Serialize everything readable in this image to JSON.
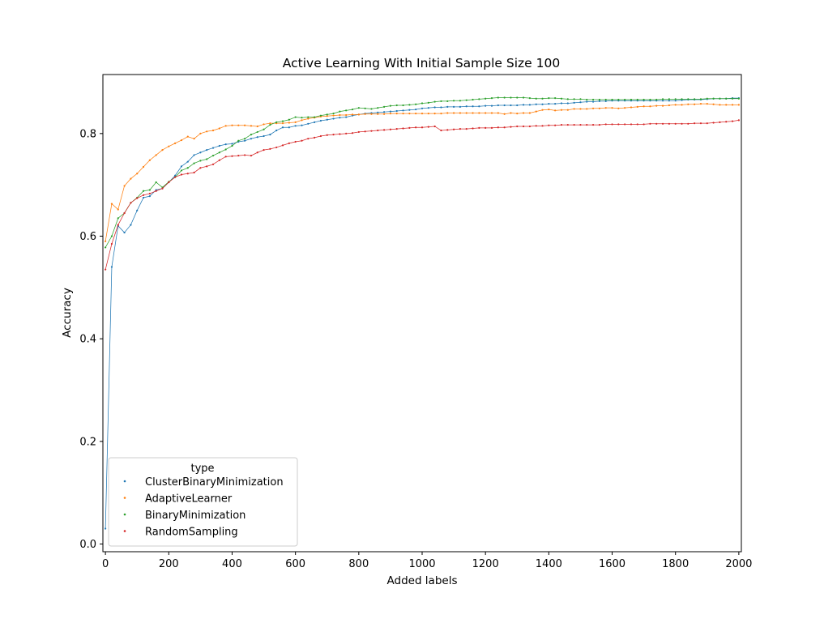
{
  "chart_data": {
    "type": "line",
    "title": "Active Learning With Initial Sample Size 100",
    "xlabel": "Added labels",
    "ylabel": "Accuracy",
    "xlim": [
      -8,
      2008
    ],
    "ylim": [
      -0.015,
      0.915
    ],
    "x_ticks": [
      0,
      200,
      400,
      600,
      800,
      1000,
      1200,
      1400,
      1600,
      1800,
      2000
    ],
    "y_ticks": [
      0.0,
      0.2,
      0.4,
      0.6,
      0.8
    ],
    "grid": false,
    "legend": {
      "title": "type",
      "position": "lower-left"
    },
    "x": [
      0,
      20,
      40,
      60,
      80,
      100,
      120,
      140,
      160,
      180,
      200,
      220,
      240,
      260,
      280,
      300,
      320,
      340,
      360,
      380,
      400,
      420,
      440,
      460,
      480,
      500,
      520,
      540,
      560,
      580,
      600,
      620,
      640,
      660,
      680,
      700,
      720,
      740,
      760,
      780,
      800,
      820,
      840,
      860,
      880,
      900,
      920,
      940,
      960,
      980,
      1000,
      1020,
      1040,
      1060,
      1080,
      1100,
      1120,
      1140,
      1160,
      1180,
      1200,
      1220,
      1240,
      1260,
      1280,
      1300,
      1320,
      1340,
      1360,
      1380,
      1400,
      1420,
      1440,
      1460,
      1480,
      1500,
      1520,
      1540,
      1560,
      1580,
      1600,
      1620,
      1640,
      1660,
      1680,
      1700,
      1720,
      1740,
      1760,
      1780,
      1800,
      1820,
      1840,
      1860,
      1880,
      1900,
      1920,
      1940,
      1960,
      1980,
      2000
    ],
    "series": [
      {
        "name": "ClusterBinaryMinimization",
        "color": "#1f77b4",
        "values": [
          0.03,
          0.54,
          0.62,
          0.607,
          0.622,
          0.65,
          0.675,
          0.678,
          0.69,
          0.693,
          0.705,
          0.718,
          0.736,
          0.745,
          0.758,
          0.763,
          0.768,
          0.772,
          0.776,
          0.779,
          0.78,
          0.784,
          0.786,
          0.79,
          0.793,
          0.795,
          0.798,
          0.806,
          0.812,
          0.812,
          0.815,
          0.816,
          0.819,
          0.822,
          0.825,
          0.827,
          0.829,
          0.831,
          0.832,
          0.835,
          0.837,
          0.839,
          0.84,
          0.841,
          0.842,
          0.843,
          0.844,
          0.845,
          0.846,
          0.847,
          0.849,
          0.85,
          0.851,
          0.851,
          0.852,
          0.852,
          0.852,
          0.853,
          0.853,
          0.853,
          0.854,
          0.854,
          0.855,
          0.855,
          0.855,
          0.855,
          0.856,
          0.856,
          0.857,
          0.857,
          0.858,
          0.858,
          0.859,
          0.859,
          0.86,
          0.861,
          0.862,
          0.862,
          0.863,
          0.863,
          0.864,
          0.864,
          0.864,
          0.864,
          0.864,
          0.864,
          0.864,
          0.864,
          0.864,
          0.864,
          0.864,
          0.865,
          0.866,
          0.866,
          0.866,
          0.867,
          0.868,
          0.868,
          0.868,
          0.869,
          0.869
        ]
      },
      {
        "name": "AdaptiveLearner",
        "color": "#ff7f0e",
        "values": [
          0.59,
          0.663,
          0.652,
          0.698,
          0.712,
          0.722,
          0.735,
          0.748,
          0.758,
          0.768,
          0.775,
          0.781,
          0.787,
          0.794,
          0.79,
          0.8,
          0.804,
          0.806,
          0.81,
          0.815,
          0.816,
          0.816,
          0.816,
          0.815,
          0.814,
          0.818,
          0.82,
          0.82,
          0.82,
          0.821,
          0.822,
          0.826,
          0.829,
          0.831,
          0.833,
          0.834,
          0.835,
          0.836,
          0.836,
          0.837,
          0.837,
          0.838,
          0.838,
          0.838,
          0.838,
          0.839,
          0.839,
          0.839,
          0.839,
          0.839,
          0.839,
          0.839,
          0.839,
          0.839,
          0.84,
          0.84,
          0.84,
          0.84,
          0.84,
          0.84,
          0.84,
          0.84,
          0.84,
          0.838,
          0.84,
          0.839,
          0.84,
          0.84,
          0.843,
          0.846,
          0.847,
          0.845,
          0.846,
          0.846,
          0.848,
          0.848,
          0.848,
          0.849,
          0.849,
          0.85,
          0.85,
          0.849,
          0.85,
          0.851,
          0.852,
          0.853,
          0.853,
          0.854,
          0.854,
          0.855,
          0.856,
          0.856,
          0.857,
          0.857,
          0.858,
          0.858,
          0.857,
          0.856,
          0.856,
          0.856,
          0.856
        ]
      },
      {
        "name": "BinaryMinimization",
        "color": "#2ca02c",
        "values": [
          0.578,
          0.6,
          0.635,
          0.645,
          0.665,
          0.675,
          0.688,
          0.69,
          0.705,
          0.695,
          0.706,
          0.715,
          0.728,
          0.733,
          0.742,
          0.747,
          0.75,
          0.757,
          0.763,
          0.769,
          0.776,
          0.786,
          0.79,
          0.798,
          0.803,
          0.808,
          0.817,
          0.822,
          0.824,
          0.827,
          0.832,
          0.831,
          0.832,
          0.832,
          0.835,
          0.837,
          0.839,
          0.843,
          0.845,
          0.847,
          0.85,
          0.849,
          0.848,
          0.85,
          0.852,
          0.854,
          0.855,
          0.855,
          0.856,
          0.857,
          0.859,
          0.86,
          0.862,
          0.863,
          0.863,
          0.864,
          0.864,
          0.865,
          0.866,
          0.867,
          0.868,
          0.869,
          0.87,
          0.87,
          0.87,
          0.87,
          0.87,
          0.869,
          0.868,
          0.868,
          0.869,
          0.869,
          0.868,
          0.867,
          0.867,
          0.867,
          0.866,
          0.866,
          0.866,
          0.866,
          0.866,
          0.866,
          0.866,
          0.866,
          0.866,
          0.866,
          0.866,
          0.866,
          0.867,
          0.867,
          0.867,
          0.867,
          0.867,
          0.867,
          0.867,
          0.868,
          0.868,
          0.868,
          0.868,
          0.868,
          0.868
        ]
      },
      {
        "name": "RandomSampling",
        "color": "#d62728",
        "values": [
          0.535,
          0.585,
          0.622,
          0.645,
          0.665,
          0.674,
          0.68,
          0.683,
          0.688,
          0.693,
          0.705,
          0.715,
          0.72,
          0.722,
          0.724,
          0.733,
          0.736,
          0.74,
          0.748,
          0.755,
          0.756,
          0.757,
          0.758,
          0.757,
          0.763,
          0.768,
          0.77,
          0.773,
          0.777,
          0.781,
          0.784,
          0.786,
          0.79,
          0.792,
          0.795,
          0.797,
          0.798,
          0.799,
          0.8,
          0.801,
          0.803,
          0.804,
          0.805,
          0.806,
          0.807,
          0.808,
          0.809,
          0.81,
          0.811,
          0.812,
          0.812,
          0.813,
          0.814,
          0.806,
          0.807,
          0.808,
          0.809,
          0.809,
          0.81,
          0.811,
          0.811,
          0.811,
          0.812,
          0.812,
          0.813,
          0.814,
          0.814,
          0.814,
          0.815,
          0.815,
          0.816,
          0.816,
          0.817,
          0.817,
          0.817,
          0.817,
          0.817,
          0.817,
          0.817,
          0.818,
          0.818,
          0.818,
          0.818,
          0.818,
          0.818,
          0.818,
          0.819,
          0.819,
          0.819,
          0.819,
          0.819,
          0.819,
          0.819,
          0.82,
          0.82,
          0.82,
          0.821,
          0.822,
          0.823,
          0.824,
          0.826
        ]
      }
    ]
  }
}
